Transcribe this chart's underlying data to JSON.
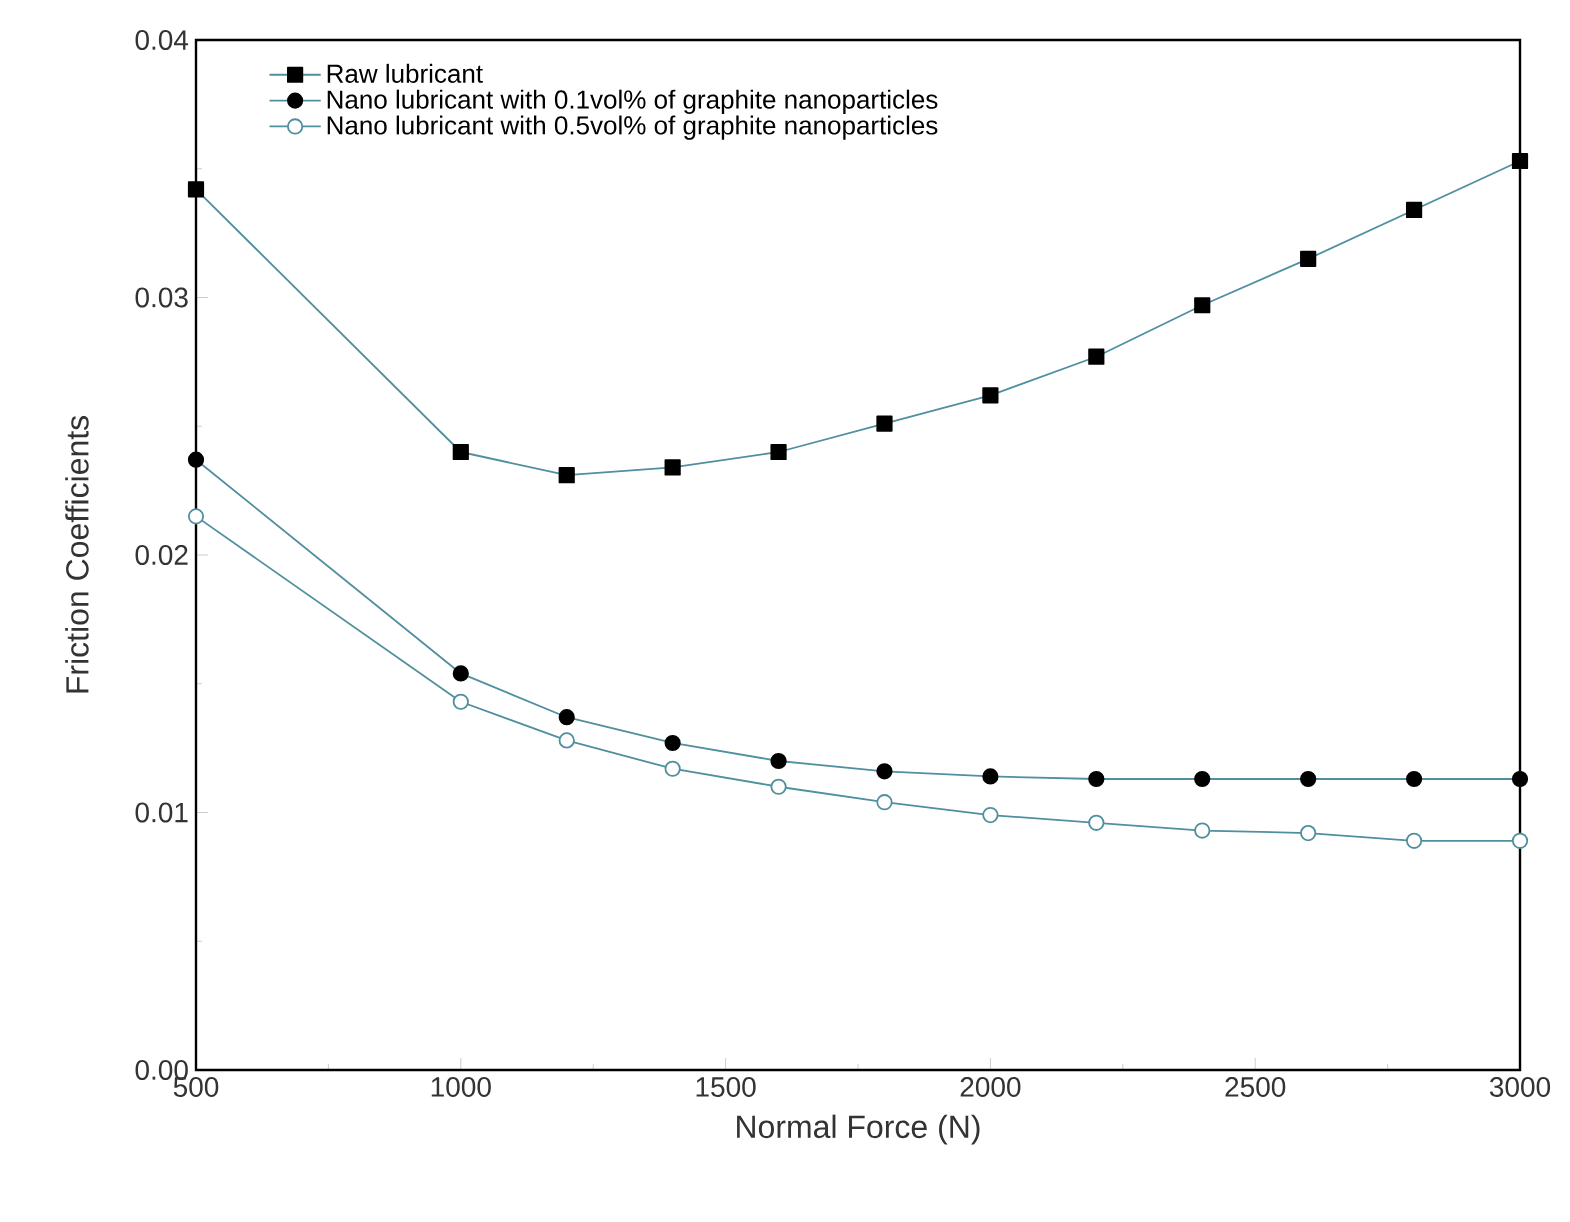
{
  "chart_data": {
    "type": "line",
    "xlabel": "Normal Force (N)",
    "ylabel": "Friction Coefficients",
    "x": [
      500,
      1000,
      1200,
      1400,
      1600,
      1800,
      2000,
      2200,
      2400,
      2600,
      2800,
      3000
    ],
    "series": [
      {
        "name": "Raw lubricant",
        "color": "#4f8f9f",
        "marker": "square",
        "values": [
          0.0342,
          0.024,
          0.0231,
          0.0234,
          0.024,
          0.0251,
          0.0262,
          0.0277,
          0.0297,
          0.0315,
          0.0334,
          0.0353
        ]
      },
      {
        "name": "Nano lubricant with 0.1vol% of graphite nanoparticles",
        "color": "#4f8f9f",
        "marker": "circle",
        "values": [
          0.0237,
          0.0154,
          0.0137,
          0.0127,
          0.012,
          0.0116,
          0.0114,
          0.0113,
          0.0113,
          0.0113,
          0.0113,
          0.0113
        ]
      },
      {
        "name": "Nano lubricant with 0.5vol% of graphite nanoparticles",
        "color": "#4f8f9f",
        "marker": "circle",
        "values": [
          0.0215,
          0.0143,
          0.0128,
          0.0117,
          0.011,
          0.0104,
          0.0099,
          0.0096,
          0.0093,
          0.0092,
          0.0089,
          0.0089
        ]
      }
    ],
    "xlim": [
      500,
      3000
    ],
    "xticks": [
      500,
      1000,
      1500,
      2000,
      2500,
      3000
    ],
    "ylim": [
      0,
      0.04
    ],
    "yticks": [
      {
        "value": 0,
        "label": "0.00"
      },
      0.01,
      0.02,
      0.03,
      0.04
    ],
    "legend": "top left",
    "grid": false,
    "line_style": "solid"
  }
}
